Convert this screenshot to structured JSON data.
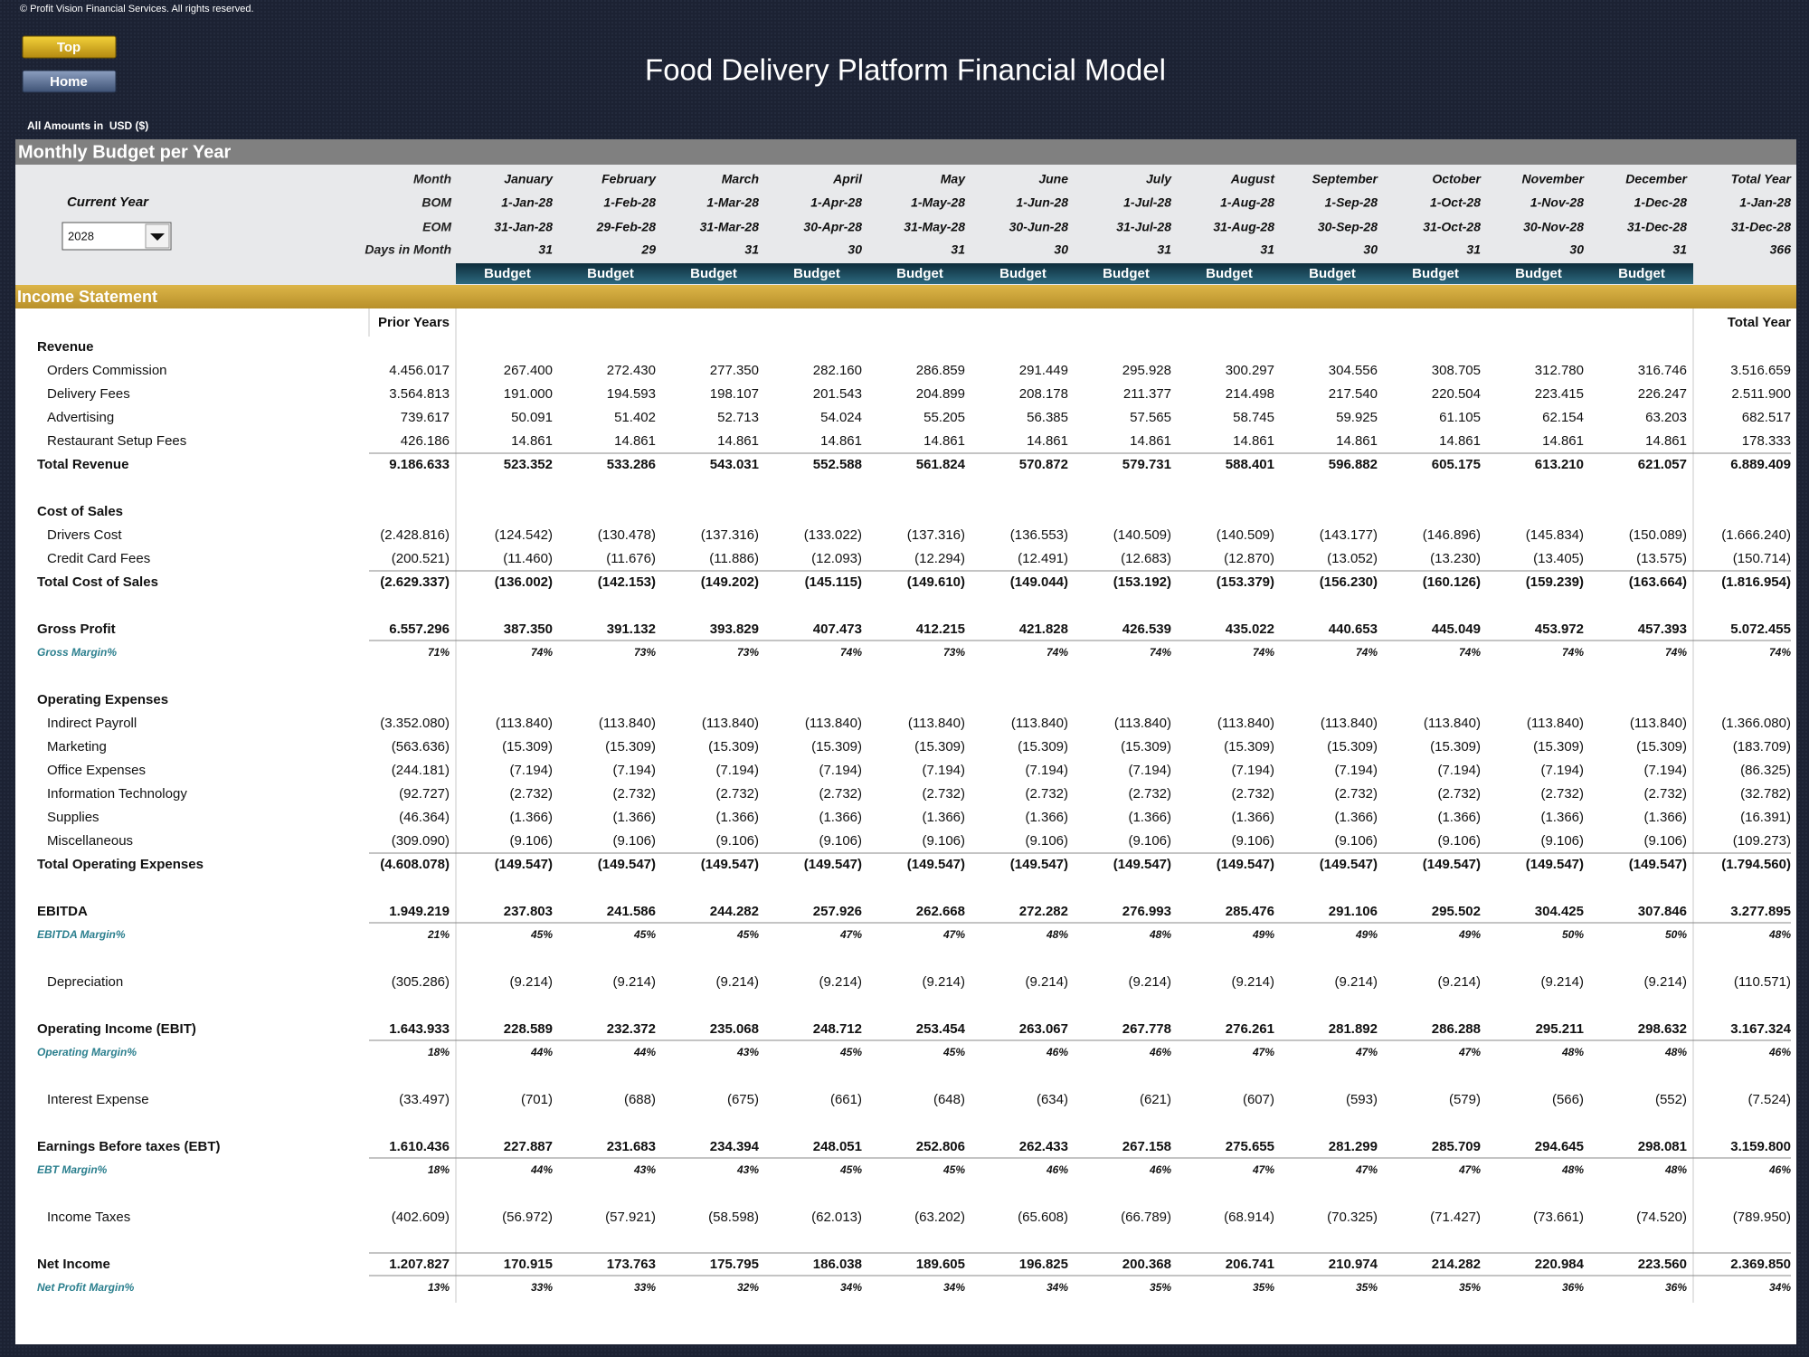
{
  "header": {
    "copyright": "© Profit Vision Financial Services. All rights reserved.",
    "buttons": [
      "Top",
      "Home"
    ],
    "title": "Food Delivery Platform Financial Model",
    "amounts_note": "All Amounts in  USD ($)"
  },
  "panel": {
    "title": "Monthly Budget per Year",
    "current_year_label": "Current Year",
    "year_select": "2028",
    "row_labels": [
      "Month",
      "BOM",
      "EOM",
      "Days in Month"
    ],
    "months": [
      {
        "month": "January",
        "bom": "1-Jan-28",
        "eom": "31-Jan-28",
        "days": 31
      },
      {
        "month": "February",
        "bom": "1-Feb-28",
        "eom": "29-Feb-28",
        "days": 29
      },
      {
        "month": "March",
        "bom": "1-Mar-28",
        "eom": "31-Mar-28",
        "days": 31
      },
      {
        "month": "April",
        "bom": "1-Apr-28",
        "eom": "30-Apr-28",
        "days": 30
      },
      {
        "month": "May",
        "bom": "1-May-28",
        "eom": "31-May-28",
        "days": 31
      },
      {
        "month": "June",
        "bom": "1-Jun-28",
        "eom": "30-Jun-28",
        "days": 30
      },
      {
        "month": "July",
        "bom": "1-Jul-28",
        "eom": "31-Jul-28",
        "days": 31
      },
      {
        "month": "August",
        "bom": "1-Aug-28",
        "eom": "31-Aug-28",
        "days": 31
      },
      {
        "month": "September",
        "bom": "1-Sep-28",
        "eom": "30-Sep-28",
        "days": 30
      },
      {
        "month": "October",
        "bom": "1-Oct-28",
        "eom": "31-Oct-28",
        "days": 31
      },
      {
        "month": "November",
        "bom": "1-Nov-28",
        "eom": "30-Nov-28",
        "days": 30
      },
      {
        "month": "December",
        "bom": "1-Dec-28",
        "eom": "31-Dec-28",
        "days": 31
      },
      {
        "month": "Total Year",
        "bom": "1-Jan-28",
        "eom": "31-Dec-28",
        "days": 366
      }
    ],
    "budget_labels": [
      "Budget",
      "Budget",
      "Budget",
      "Budget",
      "Budget",
      "Budget",
      "Budget",
      "Budget",
      "Budget",
      "Budget",
      "Budget",
      "Budget"
    ]
  },
  "income": {
    "title": "Income Statement",
    "prior_header": "Prior Years",
    "total_header": "Total Year",
    "groups": [
      [
        {
          "heading": "Revenue"
        },
        {
          "item": "Orders Commission",
          "values": [
            "4.456.017",
            "267.400",
            "272.430",
            "277.350",
            "282.160",
            "286.859",
            "291.449",
            "295.928",
            "300.297",
            "304.556",
            "308.705",
            "312.780",
            "316.746",
            "3.516.659"
          ]
        },
        {
          "item": "Delivery Fees",
          "values": [
            "3.564.813",
            "191.000",
            "194.593",
            "198.107",
            "201.543",
            "204.899",
            "208.178",
            "211.377",
            "214.498",
            "217.540",
            "220.504",
            "223.415",
            "226.247",
            "2.511.900"
          ]
        },
        {
          "item": "Advertising",
          "values": [
            "739.617",
            "50.091",
            "51.402",
            "52.713",
            "54.024",
            "55.205",
            "56.385",
            "57.565",
            "58.745",
            "59.925",
            "61.105",
            "62.154",
            "63.203",
            "682.517"
          ]
        },
        {
          "item": "Restaurant Setup Fees",
          "values": [
            "426.186",
            "14.861",
            "14.861",
            "14.861",
            "14.861",
            "14.861",
            "14.861",
            "14.861",
            "14.861",
            "14.861",
            "14.861",
            "14.861",
            "14.861",
            "178.333"
          ]
        },
        {
          "total": "Total Revenue",
          "values": [
            "9.186.633",
            "523.352",
            "533.286",
            "543.031",
            "552.588",
            "561.824",
            "570.872",
            "579.731",
            "588.401",
            "596.882",
            "605.175",
            "613.210",
            "621.057",
            "6.889.409"
          ]
        }
      ],
      [
        {
          "heading": "Cost of Sales"
        },
        {
          "item": "Drivers Cost",
          "values": [
            "(2.428.816)",
            "(124.542)",
            "(130.478)",
            "(137.316)",
            "(133.022)",
            "(137.316)",
            "(136.553)",
            "(140.509)",
            "(140.509)",
            "(143.177)",
            "(146.896)",
            "(145.834)",
            "(150.089)",
            "(1.666.240)"
          ]
        },
        {
          "item": "Credit Card Fees",
          "values": [
            "(200.521)",
            "(11.460)",
            "(11.676)",
            "(11.886)",
            "(12.093)",
            "(12.294)",
            "(12.491)",
            "(12.683)",
            "(12.870)",
            "(13.052)",
            "(13.230)",
            "(13.405)",
            "(13.575)",
            "(150.714)"
          ]
        },
        {
          "total": "Total Cost of Sales",
          "values": [
            "(2.629.337)",
            "(136.002)",
            "(142.153)",
            "(149.202)",
            "(145.115)",
            "(149.610)",
            "(149.044)",
            "(153.192)",
            "(153.379)",
            "(156.230)",
            "(160.126)",
            "(159.239)",
            "(163.664)",
            "(1.816.954)"
          ]
        }
      ],
      [
        {
          "total": "Gross Profit",
          "values": [
            "6.557.296",
            "387.350",
            "391.132",
            "393.829",
            "407.473",
            "412.215",
            "421.828",
            "426.539",
            "435.022",
            "440.653",
            "445.049",
            "453.972",
            "457.393",
            "5.072.455"
          ]
        },
        {
          "margin": "Gross Margin%",
          "values": [
            "71%",
            "74%",
            "73%",
            "73%",
            "74%",
            "73%",
            "74%",
            "74%",
            "74%",
            "74%",
            "74%",
            "74%",
            "74%",
            "74%"
          ]
        }
      ],
      [
        {
          "heading": "Operating Expenses"
        },
        {
          "item": "Indirect Payroll",
          "values": [
            "(3.352.080)",
            "(113.840)",
            "(113.840)",
            "(113.840)",
            "(113.840)",
            "(113.840)",
            "(113.840)",
            "(113.840)",
            "(113.840)",
            "(113.840)",
            "(113.840)",
            "(113.840)",
            "(113.840)",
            "(1.366.080)"
          ]
        },
        {
          "item": "Marketing",
          "values": [
            "(563.636)",
            "(15.309)",
            "(15.309)",
            "(15.309)",
            "(15.309)",
            "(15.309)",
            "(15.309)",
            "(15.309)",
            "(15.309)",
            "(15.309)",
            "(15.309)",
            "(15.309)",
            "(15.309)",
            "(183.709)"
          ]
        },
        {
          "item": "Office Expenses",
          "values": [
            "(244.181)",
            "(7.194)",
            "(7.194)",
            "(7.194)",
            "(7.194)",
            "(7.194)",
            "(7.194)",
            "(7.194)",
            "(7.194)",
            "(7.194)",
            "(7.194)",
            "(7.194)",
            "(7.194)",
            "(86.325)"
          ]
        },
        {
          "item": "Information Technology",
          "values": [
            "(92.727)",
            "(2.732)",
            "(2.732)",
            "(2.732)",
            "(2.732)",
            "(2.732)",
            "(2.732)",
            "(2.732)",
            "(2.732)",
            "(2.732)",
            "(2.732)",
            "(2.732)",
            "(2.732)",
            "(32.782)"
          ]
        },
        {
          "item": "Supplies",
          "values": [
            "(46.364)",
            "(1.366)",
            "(1.366)",
            "(1.366)",
            "(1.366)",
            "(1.366)",
            "(1.366)",
            "(1.366)",
            "(1.366)",
            "(1.366)",
            "(1.366)",
            "(1.366)",
            "(1.366)",
            "(16.391)"
          ]
        },
        {
          "item": "Miscellaneous",
          "values": [
            "(309.090)",
            "(9.106)",
            "(9.106)",
            "(9.106)",
            "(9.106)",
            "(9.106)",
            "(9.106)",
            "(9.106)",
            "(9.106)",
            "(9.106)",
            "(9.106)",
            "(9.106)",
            "(9.106)",
            "(109.273)"
          ]
        },
        {
          "total": "Total Operating Expenses",
          "values": [
            "(4.608.078)",
            "(149.547)",
            "(149.547)",
            "(149.547)",
            "(149.547)",
            "(149.547)",
            "(149.547)",
            "(149.547)",
            "(149.547)",
            "(149.547)",
            "(149.547)",
            "(149.547)",
            "(149.547)",
            "(1.794.560)"
          ]
        }
      ],
      [
        {
          "total": "EBITDA",
          "values": [
            "1.949.219",
            "237.803",
            "241.586",
            "244.282",
            "257.926",
            "262.668",
            "272.282",
            "276.993",
            "285.476",
            "291.106",
            "295.502",
            "304.425",
            "307.846",
            "3.277.895"
          ]
        },
        {
          "margin": "EBITDA Margin%",
          "values": [
            "21%",
            "45%",
            "45%",
            "45%",
            "47%",
            "47%",
            "48%",
            "48%",
            "49%",
            "49%",
            "49%",
            "50%",
            "50%",
            "48%"
          ]
        }
      ],
      [
        {
          "item": "Depreciation",
          "values": [
            "(305.286)",
            "(9.214)",
            "(9.214)",
            "(9.214)",
            "(9.214)",
            "(9.214)",
            "(9.214)",
            "(9.214)",
            "(9.214)",
            "(9.214)",
            "(9.214)",
            "(9.214)",
            "(9.214)",
            "(110.571)"
          ]
        }
      ],
      [
        {
          "total": "Operating Income (EBIT)",
          "values": [
            "1.643.933",
            "228.589",
            "232.372",
            "235.068",
            "248.712",
            "253.454",
            "263.067",
            "267.778",
            "276.261",
            "281.892",
            "286.288",
            "295.211",
            "298.632",
            "3.167.324"
          ]
        },
        {
          "margin": "Operating Margin%",
          "values": [
            "18%",
            "44%",
            "44%",
            "43%",
            "45%",
            "45%",
            "46%",
            "46%",
            "47%",
            "47%",
            "47%",
            "48%",
            "48%",
            "46%"
          ]
        }
      ],
      [
        {
          "item": "Interest Expense",
          "values": [
            "(33.497)",
            "(701)",
            "(688)",
            "(675)",
            "(661)",
            "(648)",
            "(634)",
            "(621)",
            "(607)",
            "(593)",
            "(579)",
            "(566)",
            "(552)",
            "(7.524)"
          ]
        }
      ],
      [
        {
          "total": "Earnings Before taxes (EBT)",
          "values": [
            "1.610.436",
            "227.887",
            "231.683",
            "234.394",
            "248.051",
            "252.806",
            "262.433",
            "267.158",
            "275.655",
            "281.299",
            "285.709",
            "294.645",
            "298.081",
            "3.159.800"
          ]
        },
        {
          "margin": "EBT Margin%",
          "values": [
            "18%",
            "44%",
            "43%",
            "43%",
            "45%",
            "45%",
            "46%",
            "46%",
            "47%",
            "47%",
            "47%",
            "48%",
            "48%",
            "46%"
          ]
        }
      ],
      [
        {
          "item": "Income Taxes",
          "values": [
            "(402.609)",
            "(56.972)",
            "(57.921)",
            "(58.598)",
            "(62.013)",
            "(63.202)",
            "(65.608)",
            "(66.789)",
            "(68.914)",
            "(70.325)",
            "(71.427)",
            "(73.661)",
            "(74.520)",
            "(789.950)"
          ]
        }
      ],
      [
        {
          "total": "Net Income",
          "values": [
            "1.207.827",
            "170.915",
            "173.763",
            "175.795",
            "186.038",
            "189.605",
            "196.825",
            "200.368",
            "206.741",
            "210.974",
            "214.282",
            "220.984",
            "223.560",
            "2.369.850"
          ]
        },
        {
          "margin": "Net Profit Margin%",
          "values": [
            "13%",
            "33%",
            "33%",
            "32%",
            "34%",
            "34%",
            "34%",
            "35%",
            "35%",
            "35%",
            "35%",
            "36%",
            "36%",
            "34%"
          ]
        }
      ]
    ]
  }
}
